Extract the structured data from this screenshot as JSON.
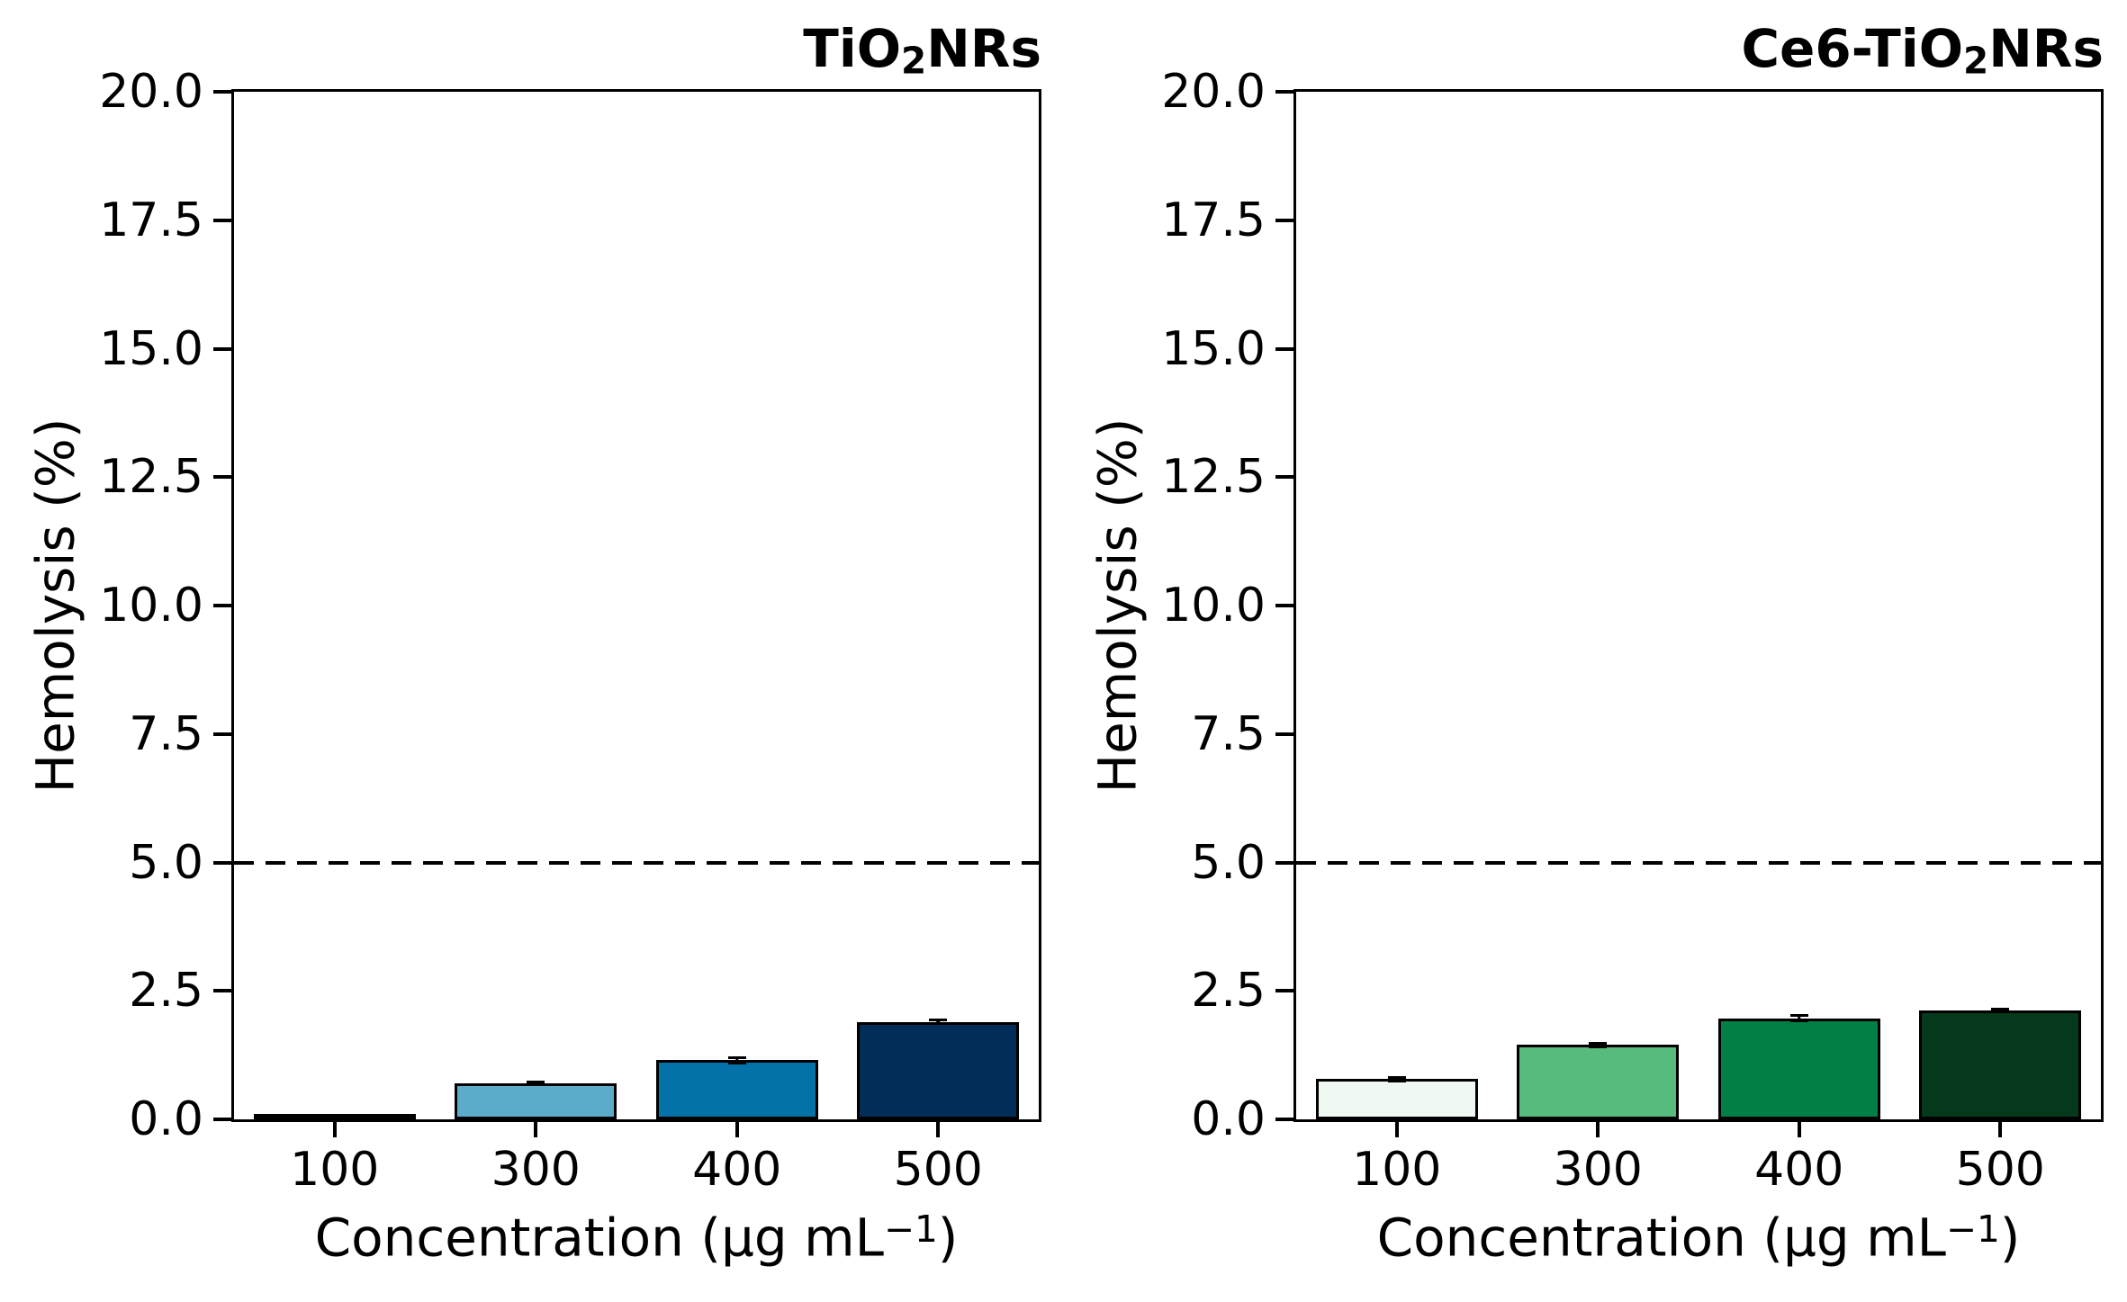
{
  "figure": {
    "ylabel": "Hemolysis (%)",
    "axis_color": "#000000",
    "background_color": "#ffffff",
    "threshold_label_value": "5.0"
  },
  "chart_data": [
    {
      "type": "bar",
      "title_parts": [
        {
          "text": "TiO"
        },
        {
          "text": "2",
          "style": "sub"
        },
        {
          "text": "NRs"
        }
      ],
      "title_plain": "TiO2NRs",
      "categories": [
        "100",
        "300",
        "400",
        "500"
      ],
      "values": [
        0.07,
        0.7,
        1.15,
        1.9
      ],
      "errors": [
        0.04,
        0.06,
        0.08,
        0.07
      ],
      "bar_colors": [
        "#f7fbff",
        "#5cabca",
        "#0272a8",
        "#032d59"
      ],
      "bar_edge_color": "#000000",
      "xlabel_parts": [
        {
          "text": "Concentration (μg mL"
        },
        {
          "text": "−1",
          "style": "sup"
        },
        {
          "text": ")"
        }
      ],
      "xlabel_plain": "Concentration (μg mL⁻¹)",
      "ylabel": "Hemolysis (%)",
      "ylim": [
        0,
        20
      ],
      "ytick_step": 2.5,
      "yticks": [
        "0.0",
        "2.5",
        "5.0",
        "7.5",
        "10.0",
        "12.5",
        "15.0",
        "17.5",
        "20.0"
      ],
      "threshold_line": {
        "y": 5.0,
        "style": "dashed",
        "color": "#000000"
      },
      "grid": false,
      "legend": false
    },
    {
      "type": "bar",
      "title_parts": [
        {
          "text": "Ce6-TiO"
        },
        {
          "text": "2",
          "style": "sub"
        },
        {
          "text": "NRs"
        }
      ],
      "title_plain": "Ce6-TiO2NRs",
      "categories": [
        "100",
        "300",
        "400",
        "500"
      ],
      "values": [
        0.78,
        1.45,
        1.97,
        2.12
      ],
      "errors": [
        0.06,
        0.06,
        0.08,
        0.06
      ],
      "bar_colors": [
        "#f0f9f1",
        "#57bb7e",
        "#027f44",
        "#04391b"
      ],
      "bar_edge_color": "#000000",
      "xlabel_parts": [
        {
          "text": "Concentration (μg mL"
        },
        {
          "text": "−1",
          "style": "sup"
        },
        {
          "text": ")"
        }
      ],
      "xlabel_plain": "Concentration (μg mL⁻¹)",
      "ylabel": "Hemolysis (%)",
      "ylim": [
        0,
        20
      ],
      "ytick_step": 2.5,
      "yticks": [
        "0.0",
        "2.5",
        "5.0",
        "7.5",
        "10.0",
        "12.5",
        "15.0",
        "17.5",
        "20.0"
      ],
      "threshold_line": {
        "y": 5.0,
        "style": "dashed",
        "color": "#000000"
      },
      "grid": false,
      "legend": false
    }
  ]
}
